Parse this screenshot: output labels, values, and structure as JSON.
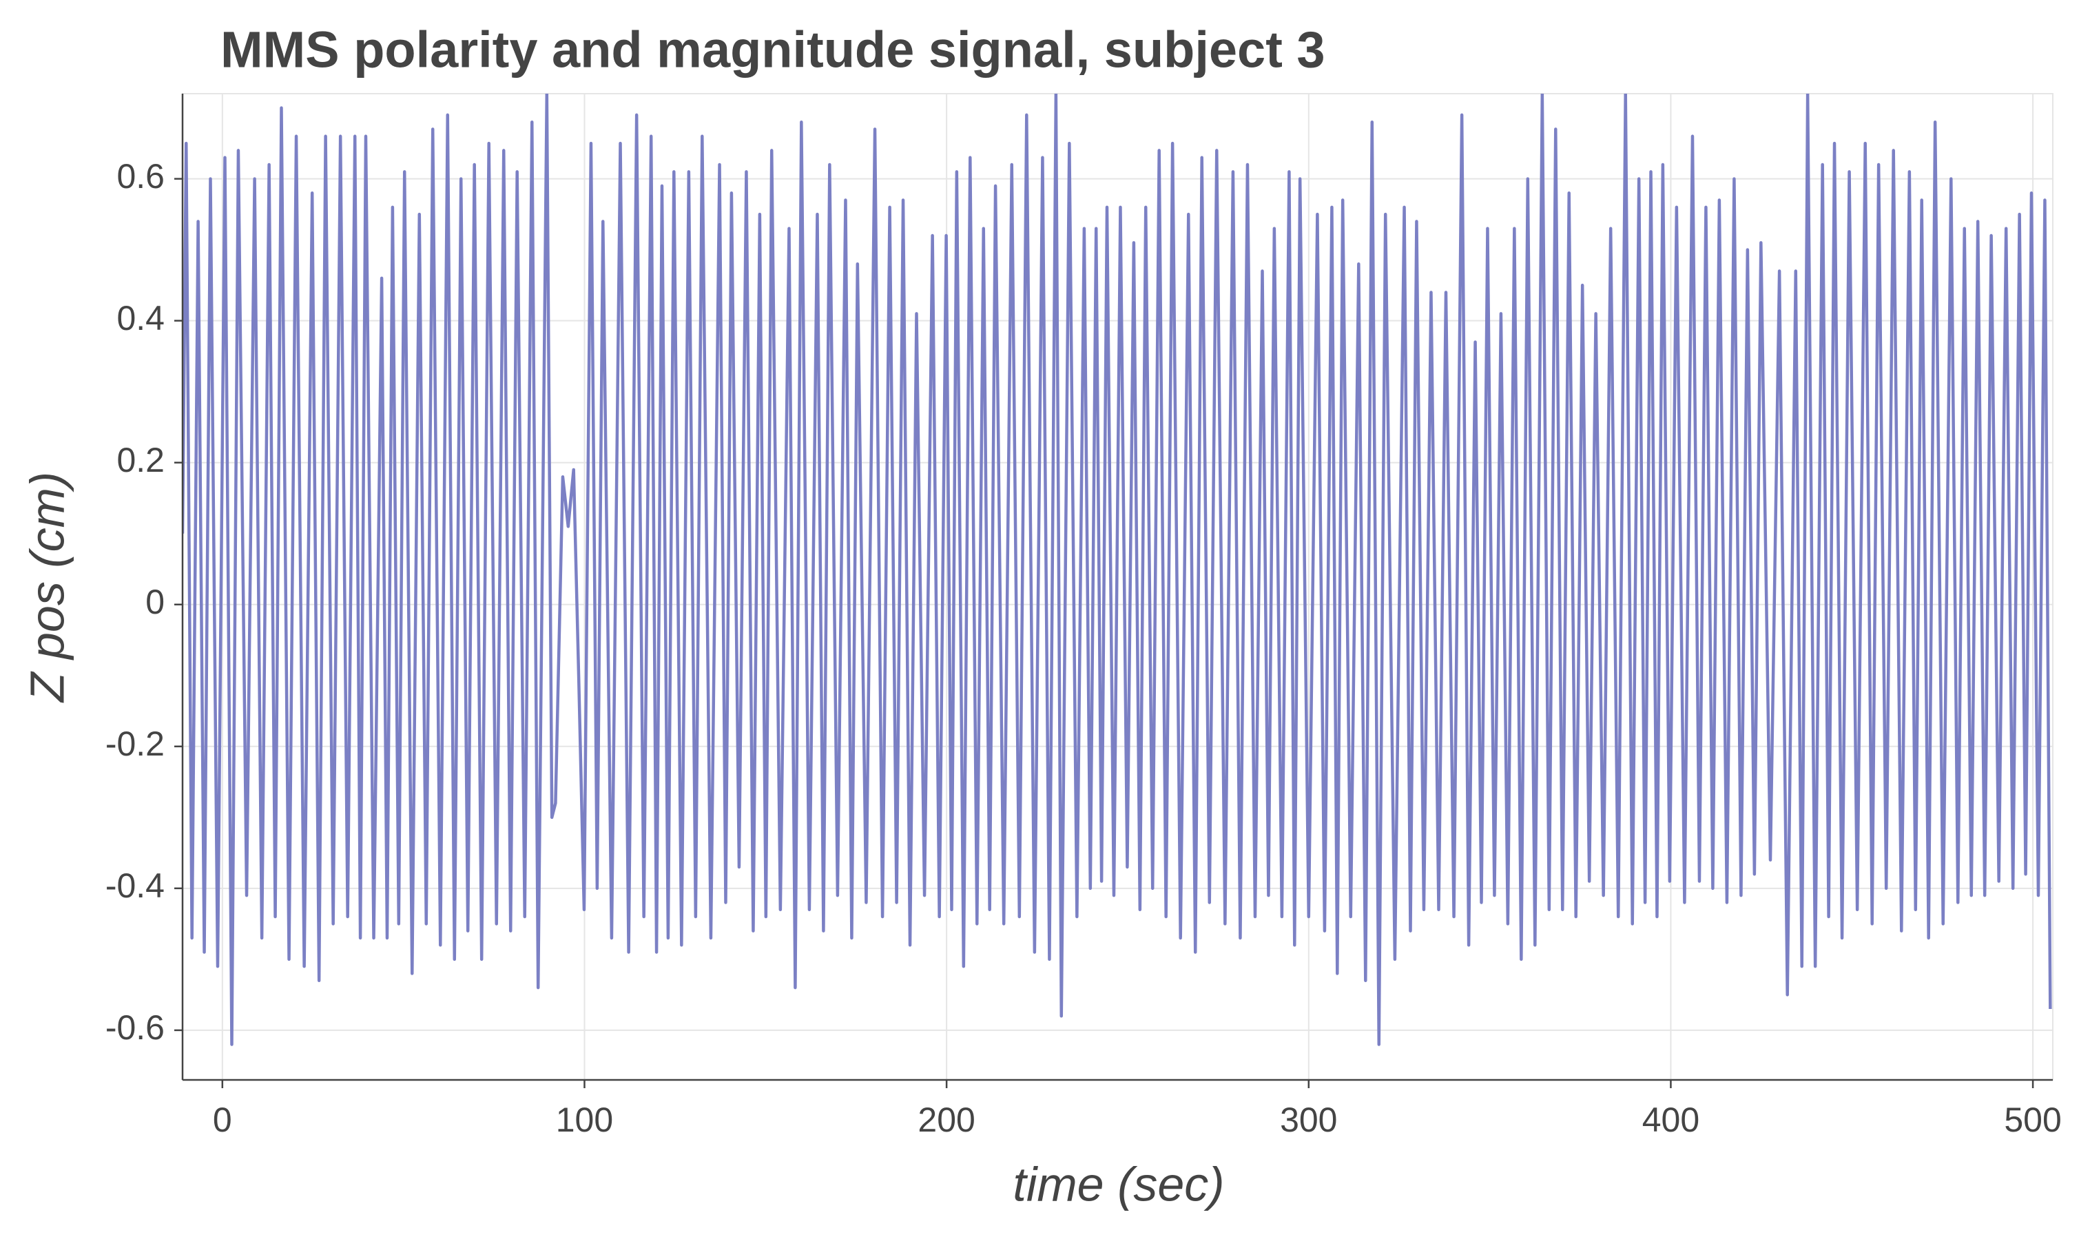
{
  "chart_data": {
    "type": "line",
    "title": "MMS polarity and magnitude signal, subject 3",
    "x_label": "time (sec)",
    "y_label": "Z pos (cm)",
    "color": "#7b80c4",
    "grid": true,
    "xlim": [
      -11,
      505.5
    ],
    "ylim": [
      -0.67,
      0.72
    ],
    "xticks": [
      0,
      100,
      200,
      300,
      400,
      500
    ],
    "yticks": [
      -0.6,
      -0.4,
      -0.2,
      0,
      0.2,
      0.4,
      0.6
    ],
    "x": [
      -11,
      -10.0,
      -8.4,
      -6.7,
      -5.0,
      -3.3,
      -1.3,
      0.7,
      2.6,
      4.4,
      6.7,
      8.9,
      10.9,
      12.9,
      14.6,
      16.3,
      18.4,
      20.4,
      22.6,
      24.8,
      26.7,
      28.5,
      30.6,
      32.6,
      34.6,
      36.6,
      38.1,
      39.6,
      41.8,
      44.0,
      45.5,
      47.0,
      48.7,
      50.3,
      52.4,
      54.4,
      56.3,
      58.1,
      60.2,
      62.2,
      64.1,
      65.9,
      67.8,
      69.6,
      71.6,
      73.6,
      75.7,
      77.7,
      79.6,
      81.4,
      83.5,
      85.5,
      87.2,
      89.6,
      91.0,
      92.0,
      94.0,
      95.5,
      97.0,
      98.4,
      99.9,
      101.8,
      103.5,
      105.1,
      107.5,
      109.9,
      112.2,
      114.4,
      116.4,
      118.4,
      119.9,
      121.4,
      123.1,
      124.7,
      126.8,
      128.8,
      130.7,
      132.5,
      134.9,
      137.3,
      139.0,
      140.6,
      142.7,
      144.7,
      146.6,
      148.4,
      150.1,
      151.7,
      154.1,
      156.5,
      158.2,
      159.9,
      162.1,
      164.3,
      166.0,
      167.7,
      169.9,
      172.1,
      173.8,
      175.4,
      177.8,
      180.2,
      182.3,
      184.3,
      186.2,
      188.0,
      189.9,
      191.7,
      193.9,
      196.1,
      198.0,
      199.9,
      201.4,
      202.8,
      204.7,
      206.5,
      208.4,
      210.2,
      211.9,
      213.5,
      215.8,
      218.0,
      220.1,
      222.1,
      224.3,
      226.5,
      228.4,
      230.2,
      231.7,
      233.9,
      236.0,
      238.0,
      239.7,
      241.3,
      242.8,
      244.3,
      246.2,
      248.0,
      249.9,
      251.7,
      253.4,
      255.0,
      256.9,
      258.7,
      260.6,
      262.4,
      264.6,
      266.8,
      268.7,
      270.5,
      272.6,
      274.6,
      276.9,
      279.1,
      281.1,
      283.1,
      285.2,
      287.2,
      288.9,
      290.5,
      292.6,
      294.6,
      296.1,
      297.6,
      300.0,
      302.4,
      304.4,
      306.4,
      307.9,
      309.4,
      311.6,
      313.8,
      315.7,
      317.5,
      319.4,
      321.2,
      323.8,
      326.4,
      328.1,
      329.8,
      331.8,
      333.8,
      335.9,
      337.9,
      340.1,
      342.3,
      344.2,
      346.0,
      347.7,
      349.4,
      351.3,
      353.1,
      355.0,
      356.8,
      358.7,
      360.5,
      362.5,
      364.5,
      366.4,
      368.2,
      370.1,
      371.9,
      373.8,
      375.6,
      377.5,
      379.3,
      381.4,
      383.4,
      385.5,
      387.5,
      389.4,
      391.2,
      392.9,
      394.5,
      396.2,
      397.8,
      399.7,
      401.6,
      403.8,
      406.0,
      407.9,
      409.7,
      411.6,
      413.4,
      415.5,
      417.5,
      419.4,
      421.2,
      423.1,
      424.9,
      427.5,
      430.0,
      432.2,
      434.5,
      436.2,
      437.8,
      439.9,
      441.9,
      443.6,
      445.2,
      447.3,
      449.3,
      451.5,
      453.7,
      455.6,
      457.4,
      459.5,
      461.5,
      463.7,
      465.9,
      467.6,
      469.3,
      471.2,
      473.0,
      475.2,
      477.4,
      479.3,
      481.1,
      483.0,
      484.8,
      486.7,
      488.5,
      490.6,
      492.6,
      494.5,
      496.3,
      498.0,
      499.6,
      501.5,
      503.3,
      504.8
    ],
    "values": [
      0.1,
      0.65,
      -0.47,
      0.54,
      -0.49,
      0.6,
      -0.51,
      0.63,
      -0.62,
      0.64,
      -0.41,
      0.6,
      -0.47,
      0.62,
      -0.44,
      0.7,
      -0.5,
      0.66,
      -0.51,
      0.58,
      -0.53,
      0.66,
      -0.45,
      0.66,
      -0.44,
      0.66,
      -0.47,
      0.66,
      -0.47,
      0.46,
      -0.47,
      0.56,
      -0.45,
      0.61,
      -0.52,
      0.55,
      -0.45,
      0.67,
      -0.48,
      0.69,
      -0.5,
      0.6,
      -0.46,
      0.62,
      -0.5,
      0.65,
      -0.45,
      0.64,
      -0.46,
      0.61,
      -0.44,
      0.68,
      -0.54,
      0.72,
      -0.3,
      -0.28,
      0.18,
      0.11,
      0.19,
      -0.1,
      -0.43,
      0.65,
      -0.4,
      0.54,
      -0.47,
      0.65,
      -0.49,
      0.69,
      -0.44,
      0.66,
      -0.49,
      0.59,
      -0.47,
      0.61,
      -0.48,
      0.61,
      -0.44,
      0.66,
      -0.47,
      0.62,
      -0.42,
      0.58,
      -0.37,
      0.61,
      -0.46,
      0.55,
      -0.44,
      0.64,
      -0.43,
      0.53,
      -0.54,
      0.68,
      -0.43,
      0.55,
      -0.46,
      0.62,
      -0.41,
      0.57,
      -0.47,
      0.48,
      -0.42,
      0.67,
      -0.44,
      0.56,
      -0.42,
      0.57,
      -0.48,
      0.41,
      -0.41,
      0.52,
      -0.44,
      0.52,
      -0.43,
      0.61,
      -0.51,
      0.63,
      -0.45,
      0.53,
      -0.43,
      0.59,
      -0.45,
      0.62,
      -0.44,
      0.69,
      -0.49,
      0.63,
      -0.5,
      0.72,
      -0.58,
      0.65,
      -0.44,
      0.53,
      -0.4,
      0.53,
      -0.39,
      0.56,
      -0.41,
      0.56,
      -0.37,
      0.51,
      -0.43,
      0.56,
      -0.4,
      0.64,
      -0.44,
      0.65,
      -0.47,
      0.55,
      -0.49,
      0.63,
      -0.42,
      0.64,
      -0.45,
      0.61,
      -0.47,
      0.62,
      -0.44,
      0.47,
      -0.41,
      0.53,
      -0.44,
      0.61,
      -0.48,
      0.6,
      -0.44,
      0.55,
      -0.46,
      0.56,
      -0.52,
      0.57,
      -0.44,
      0.48,
      -0.53,
      0.68,
      -0.62,
      0.55,
      -0.5,
      0.56,
      -0.46,
      0.54,
      -0.43,
      0.44,
      -0.43,
      0.44,
      -0.44,
      0.69,
      -0.48,
      0.37,
      -0.42,
      0.53,
      -0.41,
      0.41,
      -0.45,
      0.53,
      -0.5,
      0.6,
      -0.48,
      0.72,
      -0.43,
      0.67,
      -0.43,
      0.58,
      -0.44,
      0.45,
      -0.39,
      0.41,
      -0.41,
      0.53,
      -0.44,
      0.72,
      -0.45,
      0.6,
      -0.42,
      0.61,
      -0.44,
      0.62,
      -0.39,
      0.56,
      -0.42,
      0.66,
      -0.39,
      0.56,
      -0.4,
      0.57,
      -0.42,
      0.6,
      -0.41,
      0.5,
      -0.38,
      0.51,
      -0.36,
      0.47,
      -0.55,
      0.47,
      -0.51,
      0.72,
      -0.51,
      0.62,
      -0.44,
      0.65,
      -0.47,
      0.61,
      -0.43,
      0.65,
      -0.45,
      0.62,
      -0.4,
      0.64,
      -0.46,
      0.61,
      -0.43,
      0.57,
      -0.47,
      0.68,
      -0.45,
      0.6,
      -0.42,
      0.53,
      -0.41,
      0.54,
      -0.41,
      0.52,
      -0.39,
      0.53,
      -0.4,
      0.55,
      -0.38,
      0.58,
      -0.41,
      0.57,
      -0.57
    ]
  }
}
